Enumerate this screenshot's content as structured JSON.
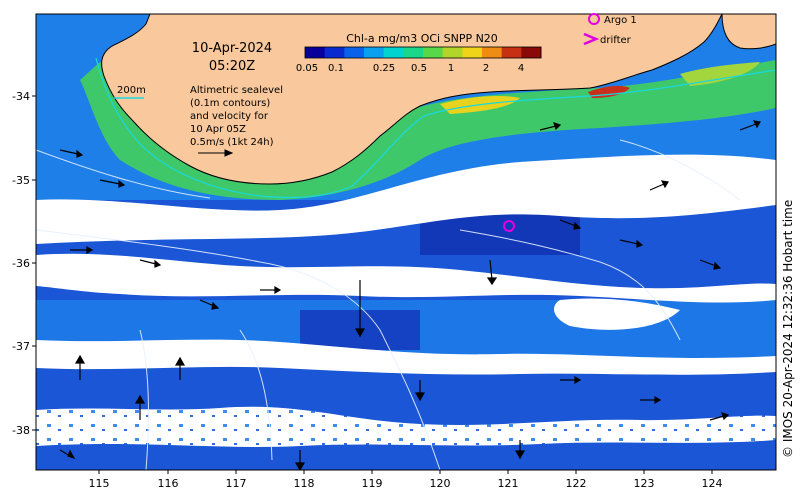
{
  "map": {
    "date": "10-Apr-2024",
    "time": "05:20Z",
    "colorbar": {
      "title": "Chl-a mg/m3 OCi SNPP N20",
      "tick_labels": [
        "0.05",
        "0.1",
        "0.25",
        "0.5",
        "1",
        "2",
        "4"
      ],
      "colors": [
        "#08009a",
        "#0a2ad0",
        "#0b62ea",
        "#0aa0f0",
        "#00d3d0",
        "#19d88b",
        "#58d848",
        "#b2d52a",
        "#f0d41a",
        "#ee8c14",
        "#c83014",
        "#8a0a0a"
      ]
    },
    "legend": {
      "argo_label": "Argo 1",
      "drifter_label": "drifter",
      "argo_color": "#e000e0",
      "drifter_color": "#e000e0"
    },
    "bathymetry_label": "200m",
    "description_lines": [
      "Altimetric sealevel",
      "(0.1m contours)",
      "and velocity for",
      "10 Apr 05Z",
      "0.5m/s (1kt 24h)"
    ],
    "x_ticks": [
      "115",
      "116",
      "117",
      "118",
      "119",
      "120",
      "121",
      "122",
      "123",
      "124"
    ],
    "y_ticks": [
      "-34",
      "-35",
      "-36",
      "-37",
      "-38"
    ],
    "credit": "© IMOS 20-Apr-2024 12:32:36 Hobart time",
    "argo_float": {
      "lon": 121.05,
      "lat": -35.55
    },
    "colors": {
      "land": "#f9c89c",
      "ocean_deep": "#1a4fd0",
      "ocean_mid": "#1f8ff0",
      "coast_green": "#3fc86a",
      "cloud": "#ffffff"
    }
  }
}
